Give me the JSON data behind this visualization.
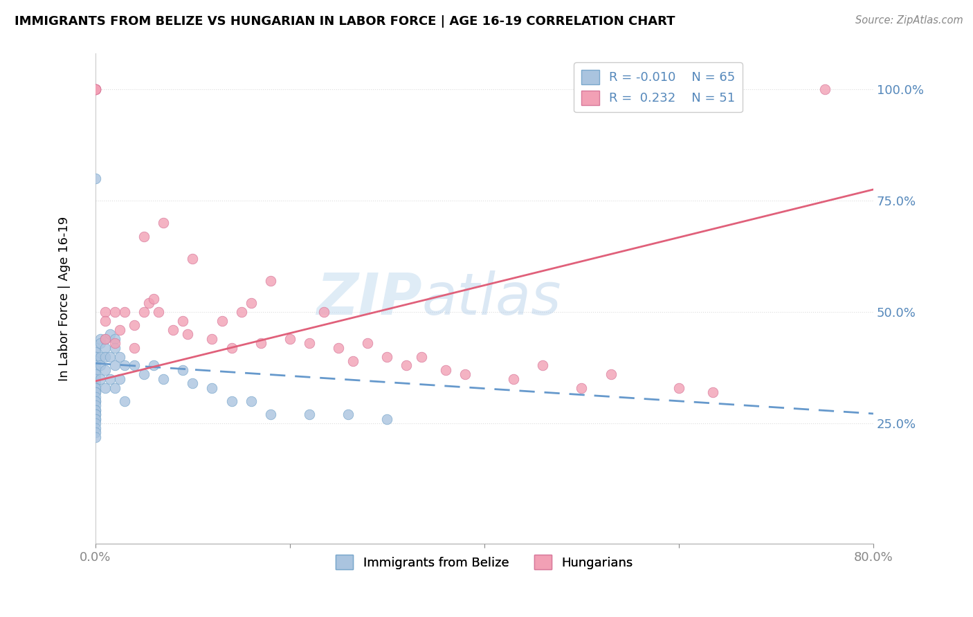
{
  "title": "IMMIGRANTS FROM BELIZE VS HUNGARIAN IN LABOR FORCE | AGE 16-19 CORRELATION CHART",
  "source_text": "Source: ZipAtlas.com",
  "ylabel": "In Labor Force | Age 16-19",
  "xlim": [
    0.0,
    0.8
  ],
  "ylim": [
    -0.02,
    1.08
  ],
  "yticks": [
    0.25,
    0.5,
    0.75,
    1.0
  ],
  "ytick_labels": [
    "25.0%",
    "50.0%",
    "75.0%",
    "100.0%"
  ],
  "xticks": [
    0.0,
    0.2,
    0.4,
    0.6,
    0.8
  ],
  "xtick_labels": [
    "0.0%",
    "",
    "",
    "",
    "80.0%"
  ],
  "color_belize": "#aac4df",
  "color_belize_edge": "#7aa8cc",
  "color_hungarian": "#f2a0b5",
  "color_hungarian_edge": "#d8789a",
  "color_belize_line": "#6699cc",
  "color_hungarian_line": "#e0607a",
  "color_tick": "#5588bb",
  "color_grid": "#dddddd",
  "watermark_color": "#d0e4f4",
  "belize_trend_x0": 0.0,
  "belize_trend_y0": 0.385,
  "belize_trend_x1": 0.8,
  "belize_trend_y1": 0.272,
  "hungarian_trend_x0": 0.0,
  "hungarian_trend_y0": 0.345,
  "hungarian_trend_x1": 0.8,
  "hungarian_trend_y1": 0.775,
  "belize_x": [
    0.0,
    0.0,
    0.0,
    0.0,
    0.0,
    0.0,
    0.0,
    0.0,
    0.0,
    0.0,
    0.0,
    0.0,
    0.0,
    0.0,
    0.0,
    0.0,
    0.0,
    0.0,
    0.0,
    0.0,
    0.0,
    0.0,
    0.0,
    0.0,
    0.0,
    0.0,
    0.0,
    0.0,
    0.0,
    0.0,
    0.005,
    0.005,
    0.005,
    0.005,
    0.005,
    0.01,
    0.01,
    0.01,
    0.01,
    0.01,
    0.015,
    0.015,
    0.015,
    0.02,
    0.02,
    0.02,
    0.02,
    0.025,
    0.025,
    0.03,
    0.03,
    0.04,
    0.05,
    0.06,
    0.07,
    0.09,
    0.1,
    0.12,
    0.14,
    0.16,
    0.18,
    0.22,
    0.26,
    0.3
  ],
  "belize_y": [
    0.42,
    0.41,
    0.4,
    0.4,
    0.39,
    0.38,
    0.38,
    0.37,
    0.36,
    0.35,
    0.34,
    0.33,
    0.33,
    0.32,
    0.32,
    0.31,
    0.3,
    0.3,
    0.29,
    0.28,
    0.28,
    0.27,
    0.27,
    0.26,
    0.26,
    0.25,
    0.24,
    0.23,
    0.22,
    0.8,
    0.44,
    0.43,
    0.4,
    0.38,
    0.35,
    0.44,
    0.42,
    0.4,
    0.37,
    0.33,
    0.45,
    0.4,
    0.35,
    0.44,
    0.42,
    0.38,
    0.33,
    0.4,
    0.35,
    0.38,
    0.3,
    0.38,
    0.36,
    0.38,
    0.35,
    0.37,
    0.34,
    0.33,
    0.3,
    0.3,
    0.27,
    0.27,
    0.27,
    0.26
  ],
  "hungarian_x": [
    0.0,
    0.0,
    0.0,
    0.0,
    0.0,
    0.0,
    0.01,
    0.01,
    0.01,
    0.02,
    0.02,
    0.025,
    0.03,
    0.04,
    0.04,
    0.05,
    0.05,
    0.055,
    0.06,
    0.065,
    0.07,
    0.08,
    0.09,
    0.095,
    0.1,
    0.12,
    0.13,
    0.14,
    0.15,
    0.16,
    0.17,
    0.18,
    0.2,
    0.22,
    0.235,
    0.25,
    0.265,
    0.28,
    0.3,
    0.32,
    0.335,
    0.36,
    0.38,
    0.43,
    0.46,
    0.5,
    0.53,
    0.6,
    0.635,
    0.75
  ],
  "hungarian_y": [
    1.0,
    1.0,
    1.0,
    1.0,
    1.0,
    1.0,
    0.5,
    0.48,
    0.44,
    0.5,
    0.43,
    0.46,
    0.5,
    0.47,
    0.42,
    0.5,
    0.67,
    0.52,
    0.53,
    0.5,
    0.7,
    0.46,
    0.48,
    0.45,
    0.62,
    0.44,
    0.48,
    0.42,
    0.5,
    0.52,
    0.43,
    0.57,
    0.44,
    0.43,
    0.5,
    0.42,
    0.39,
    0.43,
    0.4,
    0.38,
    0.4,
    0.37,
    0.36,
    0.35,
    0.38,
    0.33,
    0.36,
    0.33,
    0.32,
    1.0
  ]
}
